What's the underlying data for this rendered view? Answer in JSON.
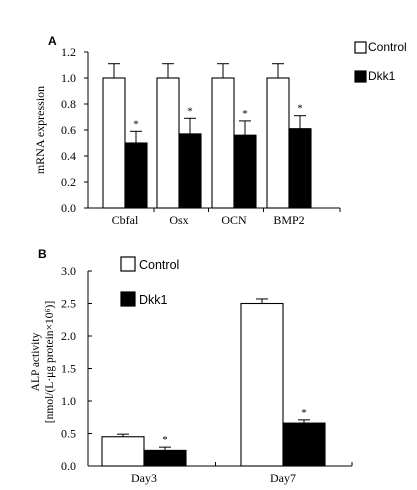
{
  "chart_data": [
    {
      "panel_label": "A",
      "type": "bar",
      "ylabel": "mRNA expression",
      "ylim": [
        0,
        1.2
      ],
      "yticks": [
        "0.0",
        "0.2",
        "0.4",
        "0.6",
        "0.8",
        "1.0",
        "1.2"
      ],
      "categories": [
        "Cbfal",
        "Osx",
        "OCN",
        "BMP2"
      ],
      "series": [
        {
          "name": "Control",
          "color": "#ffffff",
          "values": [
            1.0,
            1.0,
            1.0,
            1.0
          ],
          "errors": [
            0.11,
            0.11,
            0.11,
            0.11
          ]
        },
        {
          "name": "Dkk1",
          "color": "#000000",
          "values": [
            0.5,
            0.57,
            0.56,
            0.61
          ],
          "errors": [
            0.09,
            0.12,
            0.11,
            0.1
          ],
          "significance": [
            "*",
            "*",
            "*",
            "*"
          ]
        }
      ],
      "legend_position": "top-right"
    },
    {
      "panel_label": "B",
      "type": "bar",
      "ylabel_lines": [
        "ALP activity",
        "[nmol/(L·μg protein×10⁶)]"
      ],
      "ylim": [
        0,
        3.0
      ],
      "yticks": [
        "0.0",
        "0.5",
        "1.0",
        "1.5",
        "2.0",
        "2.5",
        "3.0"
      ],
      "categories": [
        "Day3",
        "Day7"
      ],
      "series": [
        {
          "name": "Control",
          "color": "#ffffff",
          "values": [
            0.45,
            2.5
          ],
          "errors": [
            0.04,
            0.07
          ]
        },
        {
          "name": "Dkk1",
          "color": "#000000",
          "values": [
            0.24,
            0.66
          ],
          "errors": [
            0.05,
            0.05
          ],
          "significance": [
            "*",
            "*"
          ]
        }
      ],
      "legend_position": "top-left"
    }
  ]
}
